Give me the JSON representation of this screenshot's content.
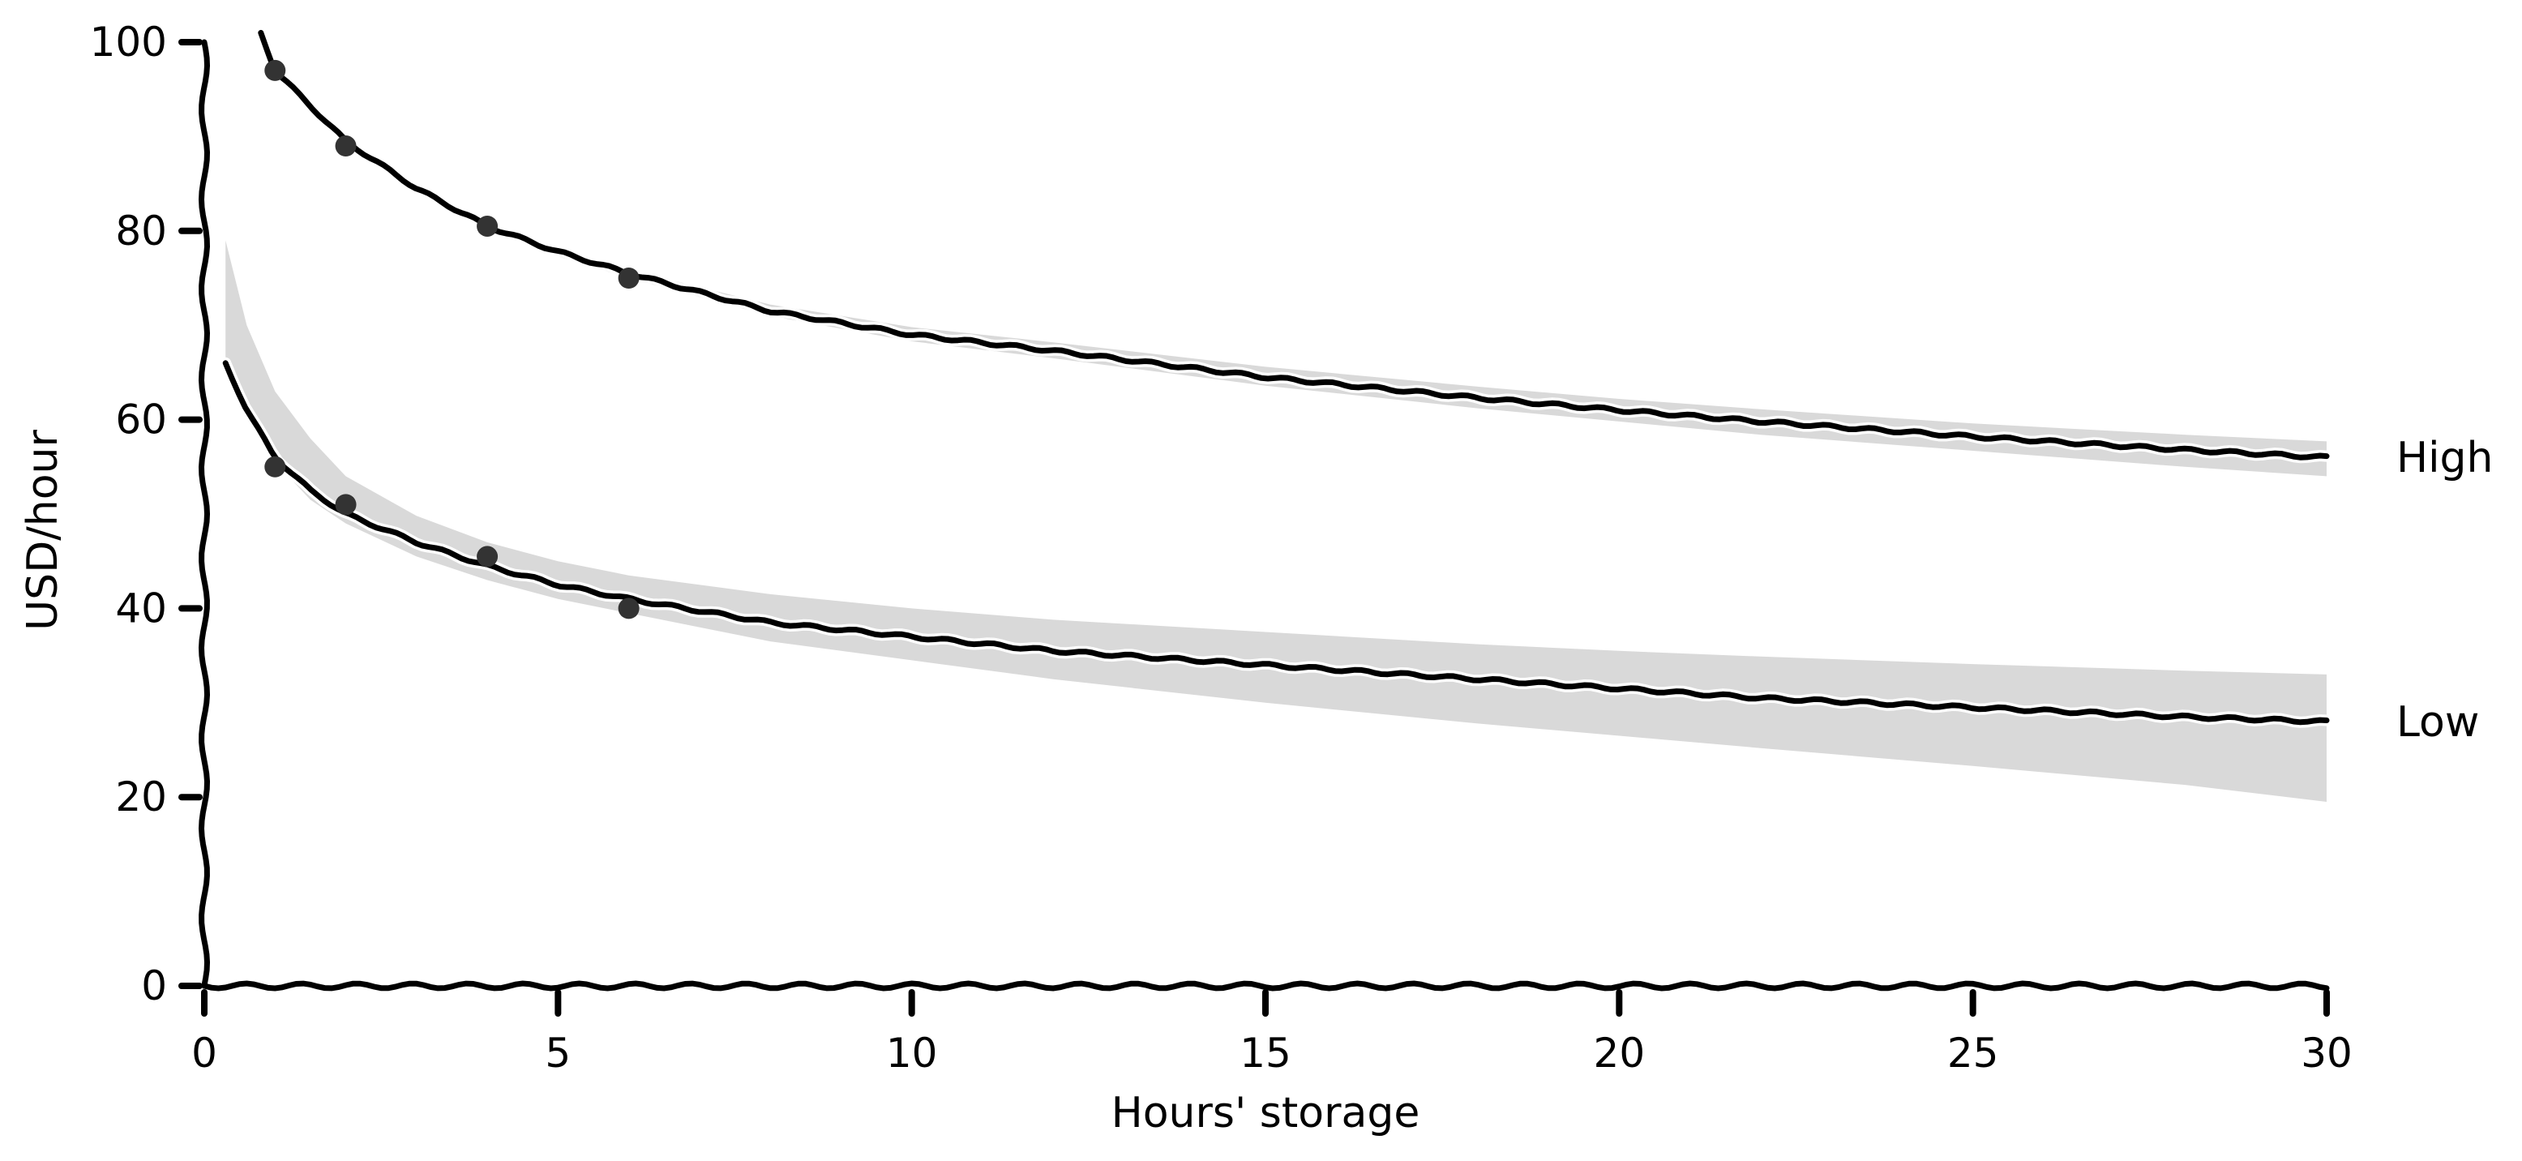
{
  "chart_data": {
    "type": "line",
    "xlabel": "Hours' storage",
    "ylabel": "USD/hour",
    "xlim": [
      0,
      30
    ],
    "ylim": [
      0,
      100
    ],
    "xticks": [
      0,
      5,
      10,
      15,
      20,
      25,
      30
    ],
    "yticks": [
      0,
      20,
      40,
      60,
      80,
      100
    ],
    "grid": false,
    "legend": "none",
    "series": [
      {
        "name": "High",
        "color": "#000000",
        "band_color": "#d9d9d9",
        "curve": {
          "x": [
            0.8,
            1,
            2,
            3,
            4,
            5,
            6,
            8,
            10,
            12,
            15,
            18,
            20,
            22,
            25,
            28,
            30
          ],
          "y": [
            101,
            97,
            89.5,
            84.5,
            80.5,
            77.8,
            75.5,
            71.5,
            69,
            67.3,
            64.5,
            62.3,
            61,
            59.8,
            58.2,
            56.8,
            56
          ],
          "lower": [
            101,
            97,
            89.3,
            84.2,
            80.2,
            77.3,
            75,
            71,
            68.3,
            66.5,
            63.6,
            61.2,
            59.8,
            58.4,
            56.7,
            55,
            54
          ],
          "upper": [
            101,
            97,
            89.6,
            84.7,
            80.8,
            78.2,
            75.9,
            72.2,
            69.8,
            68.2,
            65.6,
            63.5,
            62.2,
            61.1,
            59.6,
            58.4,
            57.7
          ]
        },
        "points": {
          "x": [
            1,
            2,
            4,
            6
          ],
          "y": [
            97,
            89,
            80.5,
            75
          ]
        }
      },
      {
        "name": "Low",
        "color": "#000000",
        "band_color": "#d9d9d9",
        "curve": {
          "x": [
            0.3,
            0.6,
            1,
            1.5,
            2,
            3,
            4,
            5,
            6,
            8,
            10,
            12,
            15,
            18,
            20,
            22,
            25,
            28,
            30
          ],
          "y": [
            66,
            61,
            56,
            52.5,
            50,
            47,
            44.5,
            42.5,
            41,
            38.5,
            37,
            35.5,
            34,
            32.5,
            31.5,
            30.5,
            29.5,
            28.5,
            28
          ],
          "lower": [
            66,
            61,
            55.5,
            51.5,
            49,
            45.5,
            43,
            41,
            39.5,
            36.5,
            34.5,
            32.5,
            30,
            27.8,
            26.5,
            25.2,
            23.3,
            21.3,
            19.5
          ],
          "upper": [
            79,
            70,
            63,
            58,
            54,
            49.8,
            47,
            45,
            43.5,
            41.5,
            40,
            38.8,
            37.5,
            36.2,
            35.5,
            34.9,
            34.1,
            33.4,
            33
          ]
        },
        "points": {
          "x": [
            1,
            2,
            4,
            6
          ],
          "y": [
            55,
            51,
            45.5,
            40
          ]
        }
      }
    ]
  }
}
